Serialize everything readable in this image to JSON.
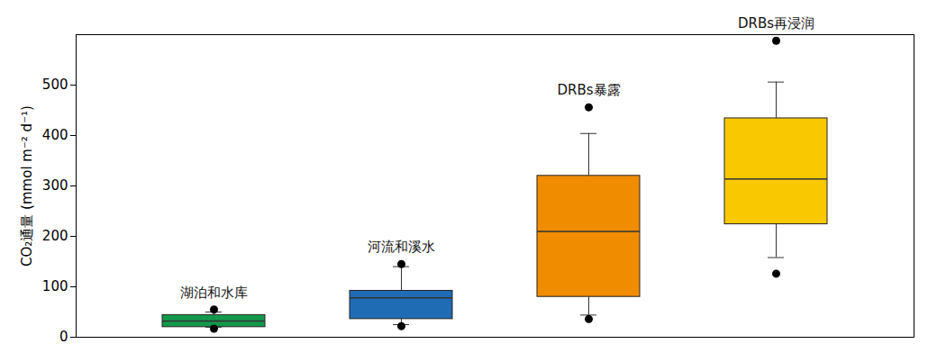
{
  "chart_data": {
    "type": "box",
    "categories": [
      "湖泊和水库",
      "河流和溪水",
      "DRBs暴露",
      "DRBs再浸润"
    ],
    "colors": [
      "#12994a",
      "#1f6cb5",
      "#f08c00",
      "#f9c800"
    ],
    "q1": [
      20,
      36,
      80,
      224
    ],
    "median": [
      32,
      78,
      210,
      314
    ],
    "q3": [
      44,
      92,
      320,
      434
    ],
    "whisker_low": [
      20,
      25,
      44,
      158
    ],
    "whisker_high": [
      50,
      140,
      404,
      506
    ],
    "outliers": [
      [
        55,
        17
      ],
      [
        145,
        22
      ],
      [
        456,
        36
      ],
      [
        588,
        126
      ]
    ],
    "y_label": "CO₂通量 (mmol m⁻² d⁻¹)",
    "ylim": [
      0,
      600
    ],
    "yticks": [
      0,
      100,
      200,
      300,
      400,
      500
    ],
    "tick_labels": "y"
  }
}
